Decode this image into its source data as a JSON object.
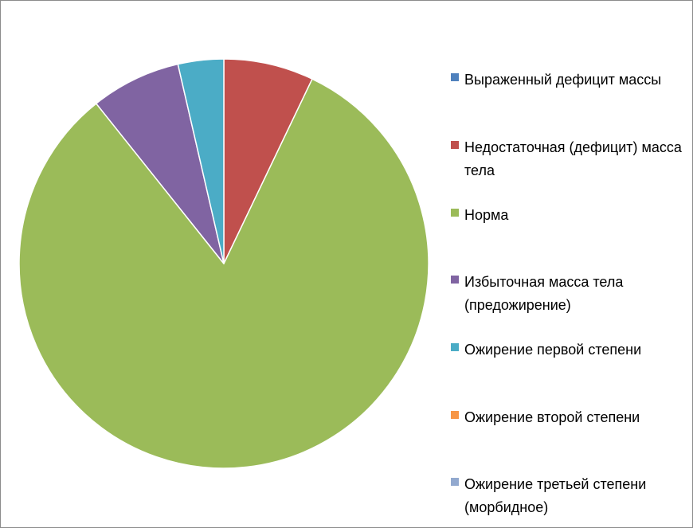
{
  "chart_data": {
    "type": "pie",
    "title": "",
    "series": [
      {
        "categories": [
          "Выраженный дефицит массы",
          "Недостаточная (дефицит) масса тела",
          "Норма",
          "Избыточная масса тела (предожирение)",
          "Ожирение первой степени",
          "Ожирение второй степени",
          "Ожирение третьей степени (морбидное)"
        ],
        "values": [
          0,
          7.1,
          82.1,
          7.1,
          3.6,
          0,
          0
        ],
        "colors": [
          "#4f81bd",
          "#c0504d",
          "#9bbb59",
          "#8064a2",
          "#4bacc6",
          "#f79646",
          "#92a9cf"
        ]
      }
    ],
    "legend": "right",
    "grid": false
  }
}
